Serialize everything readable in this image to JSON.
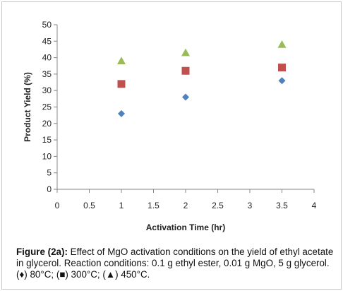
{
  "chart_data": {
    "type": "scatter",
    "title": "",
    "xlabel": "Activation Time (hr)",
    "ylabel": "Product Yield (%)",
    "xlim": [
      0,
      4
    ],
    "ylim": [
      0,
      50
    ],
    "x_ticks": [
      "0",
      "0.5",
      "1",
      "1.5",
      "2",
      "2.5",
      "3",
      "3.5",
      "4"
    ],
    "y_ticks": [
      "0",
      "5",
      "10",
      "15",
      "20",
      "25",
      "30",
      "35",
      "40",
      "45",
      "50"
    ],
    "grid": false,
    "legend": "none",
    "series": [
      {
        "marker": "diamond",
        "color": "#4f81bd",
        "x": [
          1,
          2,
          3.5
        ],
        "y": [
          23,
          28,
          33
        ]
      },
      {
        "marker": "square",
        "color": "#c0504d",
        "x": [
          1,
          2,
          3.5
        ],
        "y": [
          32,
          36,
          37
        ]
      },
      {
        "marker": "triangle",
        "color": "#9bbb59",
        "x": [
          1,
          2,
          3.5
        ],
        "y": [
          39,
          41.5,
          44
        ]
      }
    ]
  },
  "caption": {
    "label": "Figure (2a):",
    "text": " Effect of MgO activation conditions on the yield of ethyl acetate in glycerol. Reaction conditions: 0.1 g ethyl ester, 0.01 g MgO, 5 g glycerol. (♦) 80°C; (■) 300°C; (▲) 450°C."
  }
}
